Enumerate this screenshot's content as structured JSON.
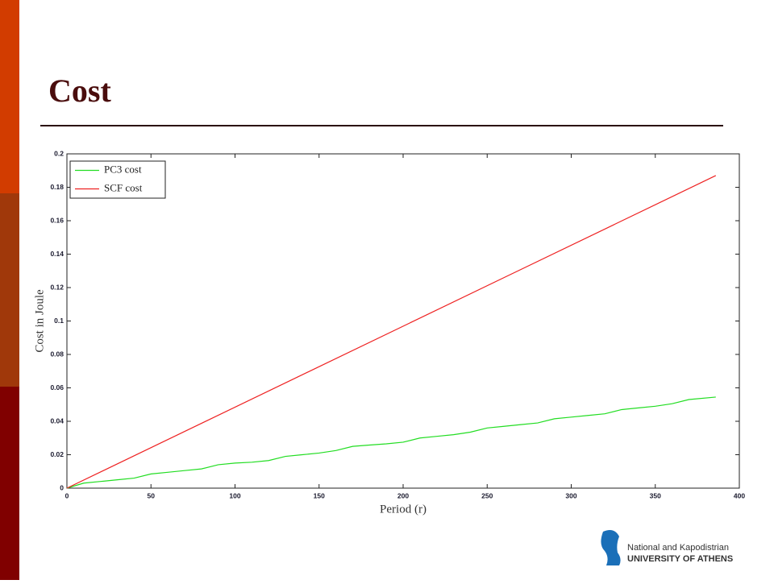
{
  "slide_title": "Cost",
  "logo": {
    "line1": "National and Kapodistrian",
    "line2": "UNIVERSITY OF ATHENS"
  },
  "chart_data": {
    "type": "line",
    "x_label": "Period (r)",
    "y_label": "Cost in Joule",
    "xlim": [
      0,
      400
    ],
    "ylim": [
      0,
      0.2
    ],
    "xticks": [
      0,
      50,
      100,
      150,
      200,
      250,
      300,
      350,
      400
    ],
    "yticks": [
      0,
      0.02,
      0.04,
      0.06,
      0.08,
      0.1,
      0.12,
      0.14,
      0.16,
      0.18,
      0.2
    ],
    "legend": "upper left",
    "series": [
      {
        "name": "PC3 cost",
        "color": "#22dd22",
        "x": [
          0,
          10,
          20,
          30,
          40,
          50,
          60,
          70,
          80,
          90,
          100,
          110,
          120,
          130,
          140,
          150,
          160,
          170,
          180,
          190,
          200,
          210,
          220,
          230,
          240,
          250,
          260,
          270,
          280,
          290,
          300,
          310,
          320,
          330,
          340,
          350,
          360,
          370,
          386
        ],
        "values": [
          0,
          0.003,
          0.004,
          0.005,
          0.006,
          0.0085,
          0.0095,
          0.0105,
          0.0115,
          0.014,
          0.015,
          0.0155,
          0.0165,
          0.019,
          0.02,
          0.021,
          0.0225,
          0.025,
          0.0258,
          0.0265,
          0.0275,
          0.03,
          0.031,
          0.032,
          0.0335,
          0.036,
          0.037,
          0.038,
          0.039,
          0.0415,
          0.0425,
          0.0435,
          0.0445,
          0.047,
          0.048,
          0.049,
          0.0505,
          0.053,
          0.0545
        ]
      },
      {
        "name": "SCF cost",
        "color": "#ee2222",
        "x": [
          0,
          386
        ],
        "values": [
          0,
          0.187
        ]
      }
    ]
  }
}
